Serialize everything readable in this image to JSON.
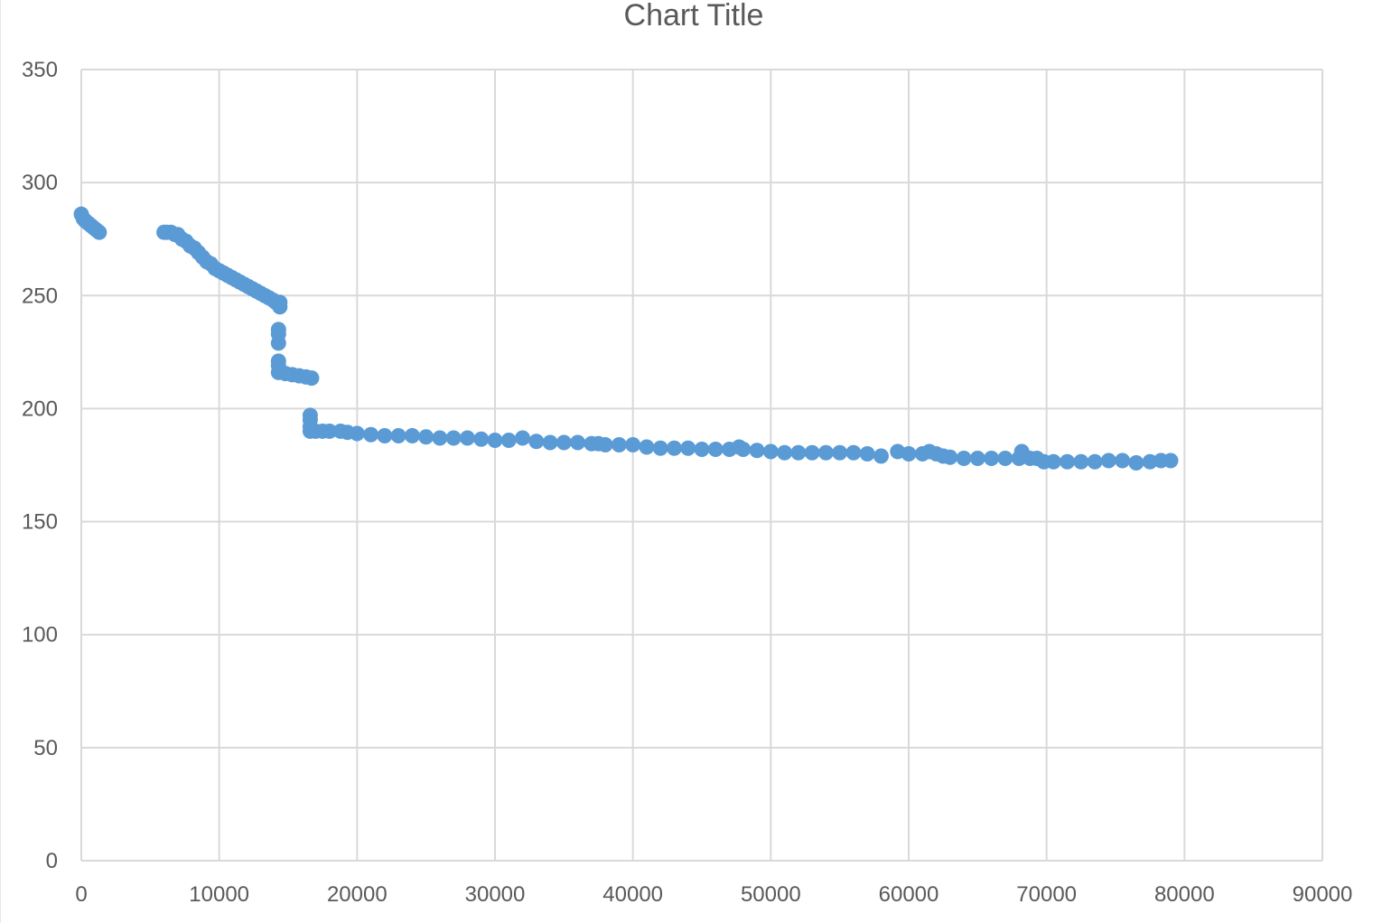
{
  "chart_data": {
    "type": "scatter",
    "title": "Chart Title",
    "xlabel": "",
    "ylabel": "",
    "xlim": [
      0,
      90000
    ],
    "ylim": [
      0,
      350
    ],
    "x_ticks": [
      0,
      10000,
      20000,
      30000,
      40000,
      50000,
      60000,
      70000,
      80000,
      90000
    ],
    "y_ticks": [
      0,
      50,
      100,
      150,
      200,
      250,
      300,
      350
    ],
    "grid": true,
    "legend": "none",
    "marker_color": "#5b9bd5",
    "series": [
      {
        "points": [
          [
            0,
            286
          ],
          [
            150,
            284
          ],
          [
            300,
            283
          ],
          [
            500,
            282
          ],
          [
            700,
            281
          ],
          [
            900,
            280
          ],
          [
            1100,
            279
          ],
          [
            1300,
            278
          ],
          [
            6000,
            278
          ],
          [
            6200,
            278
          ],
          [
            6500,
            278
          ],
          [
            6800,
            277
          ],
          [
            7000,
            277
          ],
          [
            7300,
            275
          ],
          [
            7600,
            274
          ],
          [
            7900,
            272
          ],
          [
            8200,
            271
          ],
          [
            8500,
            269
          ],
          [
            8800,
            267
          ],
          [
            9100,
            265
          ],
          [
            9400,
            264
          ],
          [
            9700,
            262
          ],
          [
            10000,
            261
          ],
          [
            10300,
            260
          ],
          [
            10600,
            259
          ],
          [
            10900,
            258
          ],
          [
            11200,
            257
          ],
          [
            11500,
            256
          ],
          [
            11800,
            255
          ],
          [
            12100,
            254
          ],
          [
            12400,
            253
          ],
          [
            12700,
            252
          ],
          [
            13000,
            251
          ],
          [
            13300,
            250
          ],
          [
            13600,
            249
          ],
          [
            13900,
            248
          ],
          [
            14100,
            247
          ],
          [
            14400,
            247
          ],
          [
            14400,
            245
          ],
          [
            14300,
            235
          ],
          [
            14300,
            233
          ],
          [
            14300,
            229
          ],
          [
            14300,
            221
          ],
          [
            14300,
            219
          ],
          [
            14300,
            216
          ],
          [
            14800,
            215.5
          ],
          [
            15300,
            215
          ],
          [
            15800,
            214.5
          ],
          [
            16300,
            214
          ],
          [
            16700,
            213.5
          ],
          [
            16600,
            197
          ],
          [
            16600,
            195
          ],
          [
            16600,
            192
          ],
          [
            16600,
            190
          ],
          [
            17000,
            190
          ],
          [
            17500,
            190
          ],
          [
            18000,
            190
          ],
          [
            18800,
            190
          ],
          [
            19300,
            189.5
          ],
          [
            20000,
            189
          ],
          [
            21000,
            188.5
          ],
          [
            22000,
            188
          ],
          [
            23000,
            188
          ],
          [
            24000,
            188
          ],
          [
            25000,
            187.5
          ],
          [
            26000,
            187
          ],
          [
            27000,
            187
          ],
          [
            28000,
            187
          ],
          [
            29000,
            186.5
          ],
          [
            30000,
            186
          ],
          [
            31000,
            186
          ],
          [
            32000,
            187
          ],
          [
            33000,
            185.5
          ],
          [
            34000,
            185
          ],
          [
            35000,
            185
          ],
          [
            36000,
            185
          ],
          [
            37000,
            184.5
          ],
          [
            37500,
            184.5
          ],
          [
            38000,
            184
          ],
          [
            39000,
            184
          ],
          [
            40000,
            184
          ],
          [
            41000,
            183
          ],
          [
            42000,
            182.5
          ],
          [
            43000,
            182.5
          ],
          [
            44000,
            182.5
          ],
          [
            45000,
            182
          ],
          [
            46000,
            182
          ],
          [
            47000,
            182
          ],
          [
            47700,
            183
          ],
          [
            48000,
            182
          ],
          [
            49000,
            181.5
          ],
          [
            50000,
            181
          ],
          [
            51000,
            180.5
          ],
          [
            52000,
            180.5
          ],
          [
            53000,
            180.5
          ],
          [
            54000,
            180.5
          ],
          [
            55000,
            180.5
          ],
          [
            56000,
            180.5
          ],
          [
            57000,
            180
          ],
          [
            58000,
            179
          ],
          [
            59200,
            181
          ],
          [
            60000,
            180
          ],
          [
            61000,
            180
          ],
          [
            61500,
            181
          ],
          [
            62000,
            180
          ],
          [
            62500,
            179
          ],
          [
            63000,
            178.5
          ],
          [
            64000,
            178
          ],
          [
            65000,
            178
          ],
          [
            66000,
            178
          ],
          [
            67000,
            178
          ],
          [
            68000,
            178
          ],
          [
            68200,
            181
          ],
          [
            68800,
            178
          ],
          [
            69300,
            178
          ],
          [
            69800,
            176.5
          ],
          [
            70500,
            176.5
          ],
          [
            71500,
            176.5
          ],
          [
            72500,
            176.5
          ],
          [
            73500,
            176.5
          ],
          [
            74500,
            177
          ],
          [
            75500,
            177
          ],
          [
            76500,
            176
          ],
          [
            77500,
            176.5
          ],
          [
            78300,
            177
          ],
          [
            79000,
            177
          ]
        ]
      }
    ]
  }
}
